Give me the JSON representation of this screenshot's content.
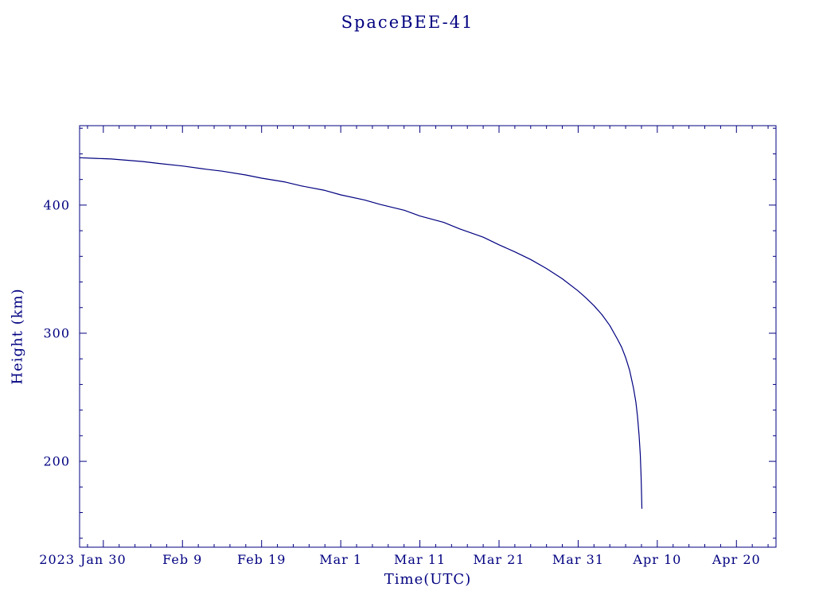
{
  "page": {
    "background": "#ffffff"
  },
  "chart_data": {
    "type": "line",
    "title": "SpaceBEE-41",
    "xlabel": "Time(UTC)",
    "ylabel": "Height (km)",
    "color": "#000080",
    "x_unit": "days from axis origin (2023 Jan 27)",
    "xlim": [
      0,
      88
    ],
    "ylim": [
      133,
      462
    ],
    "x_axis": {
      "year_label": "2023",
      "tick_days": [
        3,
        13,
        23,
        33,
        43,
        53,
        63,
        73,
        83
      ],
      "tick_labels": [
        "Jan 30",
        "Feb 9",
        "Feb 19",
        "Mar 1",
        "Mar 11",
        "Mar 21",
        "Mar 31",
        "Apr 10",
        "Apr 20"
      ],
      "minor_tick_step_days": 2
    },
    "y_axis": {
      "tick_values": [
        200,
        300,
        400
      ],
      "tick_labels": [
        "200",
        "300",
        "400"
      ],
      "minor_tick_step_km": 20
    },
    "series": [
      {
        "name": "SpaceBEE-41 height",
        "points": [
          [
            0,
            437
          ],
          [
            2,
            436.5
          ],
          [
            4,
            436
          ],
          [
            6,
            435
          ],
          [
            8,
            434
          ],
          [
            10,
            432.5
          ],
          [
            13,
            430.5
          ],
          [
            16,
            428
          ],
          [
            18,
            426.5
          ],
          [
            21,
            423.5
          ],
          [
            23,
            421
          ],
          [
            26,
            418
          ],
          [
            28,
            415
          ],
          [
            31,
            411.5
          ],
          [
            33,
            408
          ],
          [
            36,
            404
          ],
          [
            38,
            400.5
          ],
          [
            41,
            396
          ],
          [
            43,
            391.5
          ],
          [
            46,
            386.5
          ],
          [
            48,
            381.5
          ],
          [
            51,
            375
          ],
          [
            53,
            369
          ],
          [
            55,
            363.5
          ],
          [
            57,
            357.5
          ],
          [
            59,
            350.5
          ],
          [
            61,
            342.5
          ],
          [
            63,
            333
          ],
          [
            64,
            327.5
          ],
          [
            65,
            321.5
          ],
          [
            66,
            314.5
          ],
          [
            67,
            306
          ],
          [
            68,
            295
          ],
          [
            68.5,
            289
          ],
          [
            69,
            281
          ],
          [
            69.5,
            271
          ],
          [
            70,
            257
          ],
          [
            70.3,
            246
          ],
          [
            70.5,
            235
          ],
          [
            70.7,
            220
          ],
          [
            70.85,
            205
          ],
          [
            70.95,
            188
          ],
          [
            71.0,
            176
          ],
          [
            71.05,
            163
          ]
        ]
      }
    ]
  }
}
